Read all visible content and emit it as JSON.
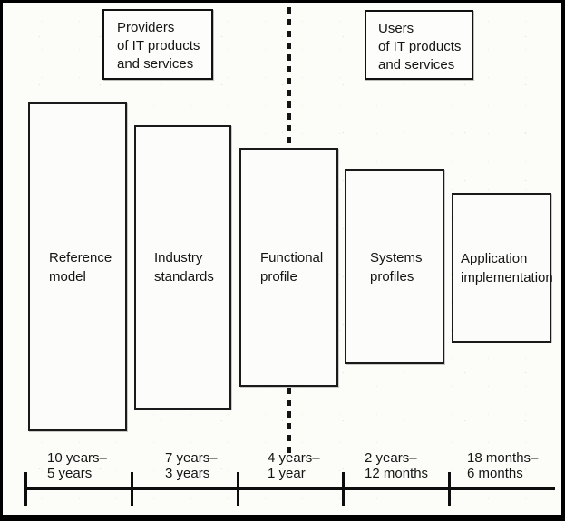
{
  "figure": {
    "description": "Standards lifecycle diagram: providers vs users of IT products and services",
    "top_boxes": {
      "providers": {
        "label": "Providers\nof IT products\nand services"
      },
      "users": {
        "label": "Users\nof IT products\nand services"
      }
    },
    "stages": [
      {
        "label": "Reference\nmodel",
        "timescale": "10 years–\n5 years"
      },
      {
        "label": "Industry\nstandards",
        "timescale": "7 years–\n3 years"
      },
      {
        "label": "Functional\nprofile",
        "timescale": "4 years–\n1 year"
      },
      {
        "label": "Systems\nprofiles",
        "timescale": "2 years–\n12 months"
      },
      {
        "label": "Application\nimplementation",
        "timescale": "18 months–\n6 months"
      }
    ],
    "colors": {
      "ink": "#151515",
      "background": "#fcfcf9",
      "border": "#000000"
    }
  }
}
